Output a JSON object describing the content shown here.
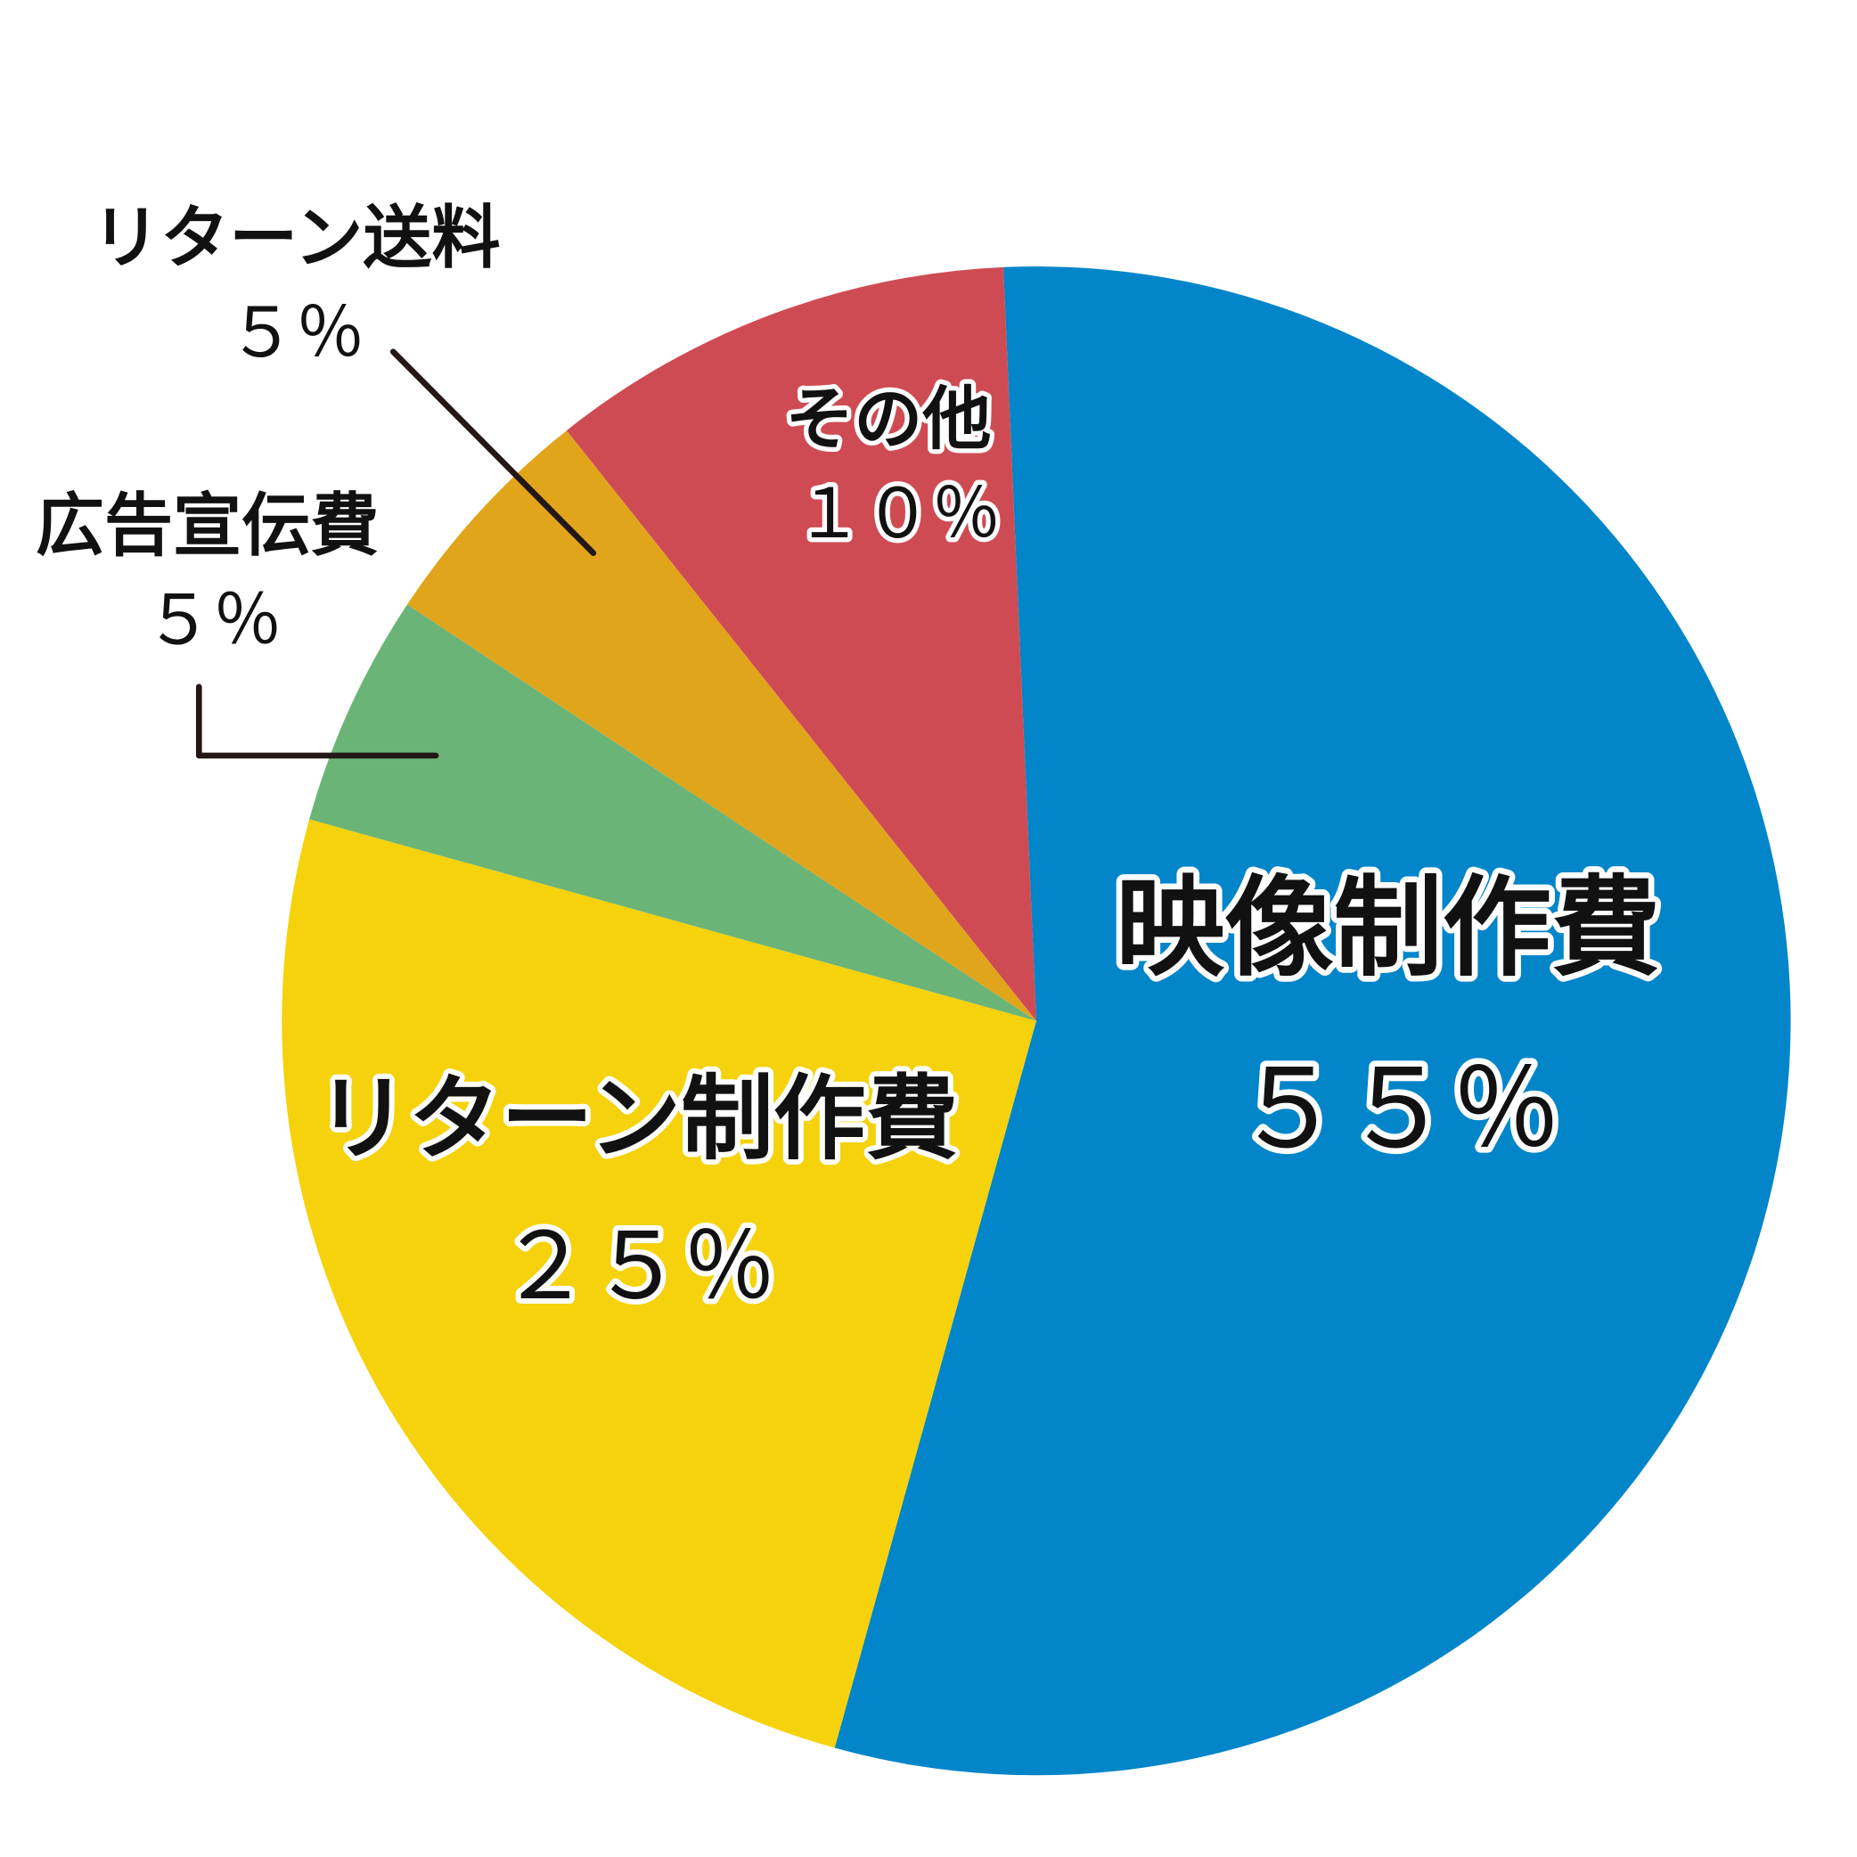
{
  "chart_data": {
    "type": "pie",
    "categories": [
      "映像制作費",
      "リターン制作費",
      "広告宣伝費",
      "リターン送料",
      "その他"
    ],
    "values": [
      55,
      25,
      5,
      5,
      10
    ],
    "value_labels": [
      "５５％",
      "２５％",
      "５％",
      "５％",
      "１０％"
    ],
    "colors": [
      "#0285c9",
      "#f5d20b",
      "#6bb478",
      "#e1a51c",
      "#cf4b54"
    ]
  }
}
